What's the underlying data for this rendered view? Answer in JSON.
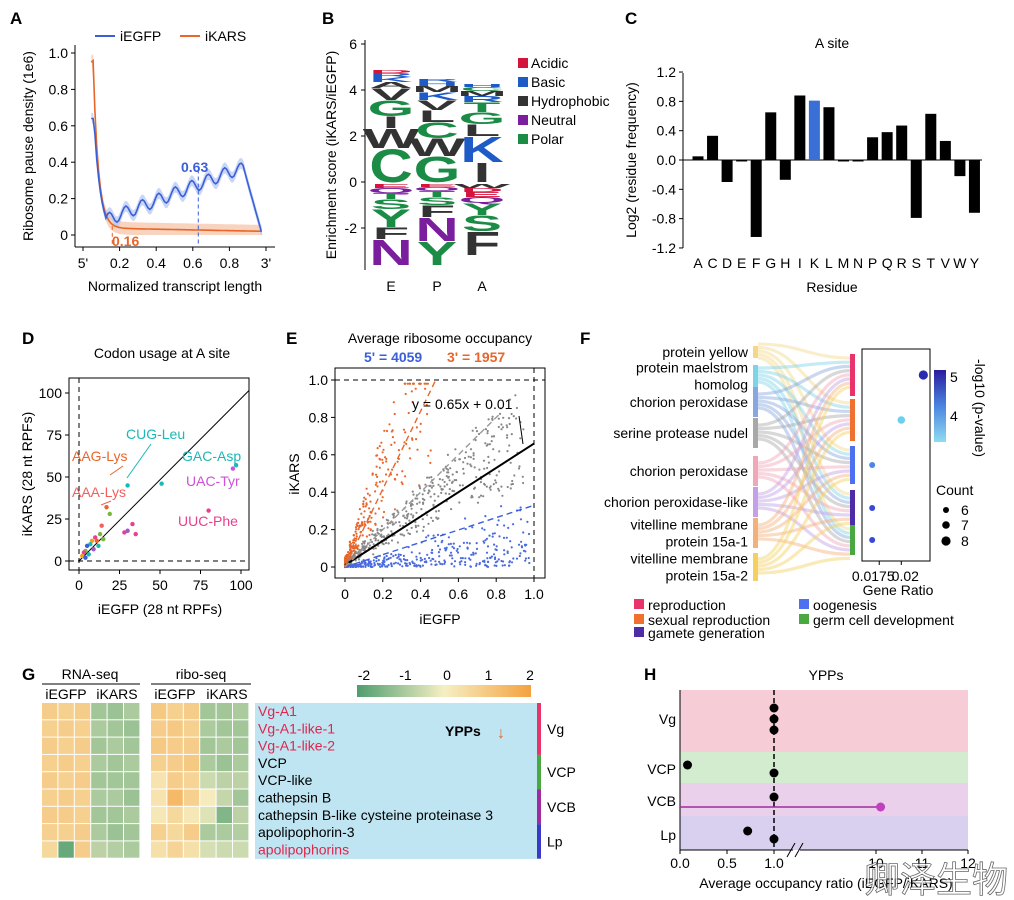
{
  "watermark": "卿泽生物",
  "colors": {
    "egfp": "#3a5fd8",
    "kars": "#e8662a",
    "black": "#111111",
    "grey": "#808080",
    "light_blue": "#a9ddf0"
  },
  "panelA": {
    "letter": "A",
    "legend": [
      "iEGFP",
      "iKARS"
    ],
    "ylabel": "Ribosome pause density (1e6)",
    "xlabel": "Normalized transcript length",
    "yticks": [
      "0",
      "0.2",
      "0.4",
      "0.6",
      "0.8",
      "1.0"
    ],
    "xticks": [
      "5'",
      "0.2",
      "0.4",
      "0.6",
      "0.8",
      "3'"
    ],
    "ann_egfp": "0.63",
    "ann_kars": "0.16"
  },
  "panelB": {
    "letter": "B",
    "ylabel": "Enrichment score (iKARS/iEGFP)",
    "yticks": [
      "-2",
      "0",
      "2",
      "4",
      "6"
    ],
    "xticks": [
      "E",
      "P",
      "A"
    ],
    "legend": [
      {
        "label": "Acidic",
        "color": "#d4143c"
      },
      {
        "label": "Basic",
        "color": "#1f5bc7"
      },
      {
        "label": "Hydrophobic",
        "color": "#333333"
      },
      {
        "label": "Neutral",
        "color": "#7a1e9e"
      },
      {
        "label": "Polar",
        "color": "#1a8c45"
      }
    ],
    "columns": [
      {
        "pos": [
          {
            "l": "C",
            "c": "#1a8c45",
            "h": 34
          },
          {
            "l": "W",
            "c": "#333333",
            "h": 20
          },
          {
            "l": "I",
            "c": "#333333",
            "h": 12
          },
          {
            "l": "G",
            "c": "#1a8c45",
            "h": 16
          },
          {
            "l": "V",
            "c": "#333333",
            "h": 12
          },
          {
            "l": "A",
            "c": "#333333",
            "h": 6
          },
          {
            "l": "K",
            "c": "#1f5bc7",
            "h": 5
          },
          {
            "l": "R",
            "c": "#1f5bc7",
            "h": 4
          },
          {
            "l": "D",
            "c": "#d4143c",
            "h": 3
          }
        ],
        "neg": [
          {
            "l": "E",
            "c": "#d4143c",
            "h": 4
          },
          {
            "l": "Q",
            "c": "#7a1e9e",
            "h": 5
          },
          {
            "l": "T",
            "c": "#1a8c45",
            "h": 6
          },
          {
            "l": "S",
            "c": "#1a8c45",
            "h": 10
          },
          {
            "l": "Y",
            "c": "#1a8c45",
            "h": 18
          },
          {
            "l": "F",
            "c": "#333333",
            "h": 12
          },
          {
            "l": "N",
            "c": "#7a1e9e",
            "h": 26
          }
        ]
      },
      {
        "pos": [
          {
            "l": "G",
            "c": "#1a8c45",
            "h": 26
          },
          {
            "l": "W",
            "c": "#333333",
            "h": 18
          },
          {
            "l": "C",
            "c": "#1a8c45",
            "h": 16
          },
          {
            "l": "L",
            "c": "#333333",
            "h": 12
          },
          {
            "l": "V",
            "c": "#333333",
            "h": 10
          },
          {
            "l": "K",
            "c": "#1f5bc7",
            "h": 8
          },
          {
            "l": "M",
            "c": "#333333",
            "h": 6
          },
          {
            "l": "H",
            "c": "#1f5bc7",
            "h": 4
          },
          {
            "l": "R",
            "c": "#1f5bc7",
            "h": 3
          }
        ],
        "neg": [
          {
            "l": "E",
            "c": "#d4143c",
            "h": 3
          },
          {
            "l": "Q",
            "c": "#7a1e9e",
            "h": 4
          },
          {
            "l": "T",
            "c": "#1a8c45",
            "h": 6
          },
          {
            "l": "S",
            "c": "#1a8c45",
            "h": 8
          },
          {
            "l": "F",
            "c": "#333333",
            "h": 12
          },
          {
            "l": "N",
            "c": "#7a1e9e",
            "h": 24
          },
          {
            "l": "Y",
            "c": "#1a8c45",
            "h": 24
          }
        ]
      },
      {
        "pos": [
          {
            "l": "I",
            "c": "#333333",
            "h": 20
          },
          {
            "l": "K",
            "c": "#1f5bc7",
            "h": 26
          },
          {
            "l": "L",
            "c": "#333333",
            "h": 12
          },
          {
            "l": "G",
            "c": "#1a8c45",
            "h": 12
          },
          {
            "l": "T",
            "c": "#1a8c45",
            "h": 10
          },
          {
            "l": "R",
            "c": "#1f5bc7",
            "h": 6
          },
          {
            "l": "M",
            "c": "#333333",
            "h": 5
          },
          {
            "l": "C",
            "c": "#1a8c45",
            "h": 4
          },
          {
            "l": "H",
            "c": "#1f5bc7",
            "h": 3
          }
        ],
        "neg": [
          {
            "l": "W",
            "c": "#333333",
            "h": 4
          },
          {
            "l": "D",
            "c": "#d4143c",
            "h": 4
          },
          {
            "l": "E",
            "c": "#d4143c",
            "h": 5
          },
          {
            "l": "Q",
            "c": "#7a1e9e",
            "h": 6
          },
          {
            "l": "Y",
            "c": "#1a8c45",
            "h": 12
          },
          {
            "l": "S",
            "c": "#1a8c45",
            "h": 16
          },
          {
            "l": "F",
            "c": "#333333",
            "h": 24
          }
        ]
      }
    ]
  },
  "panelC": {
    "letter": "C",
    "title": "A site",
    "ylabel": "Log2 (residue frequency)",
    "xlabel": "Residue",
    "yticks": [
      "-1.2",
      "-0.8",
      "-0.4",
      "0.0",
      "0.4",
      "0.8",
      "1.2"
    ],
    "categories": [
      "A",
      "C",
      "D",
      "E",
      "F",
      "G",
      "H",
      "I",
      "K",
      "L",
      "M",
      "N",
      "P",
      "Q",
      "R",
      "S",
      "T",
      "V",
      "W",
      "Y"
    ],
    "values": [
      0.05,
      0.33,
      -0.3,
      -0.02,
      -1.05,
      0.65,
      -0.27,
      0.88,
      0.81,
      0.72,
      -0.02,
      -0.02,
      0.31,
      0.38,
      0.47,
      -0.79,
      0.63,
      0.26,
      -0.22,
      -0.72
    ],
    "highlight": "K"
  },
  "panelD": {
    "letter": "D",
    "title": "Codon usage at A site",
    "xlabel": "iEGFP (28 nt RPFs)",
    "ylabel": "iKARS (28 nt RPFs)",
    "ticks": [
      "0",
      "25",
      "50",
      "75",
      "100"
    ],
    "labels": [
      {
        "text": "CUG-Leu",
        "color": "#1ab8b8"
      },
      {
        "text": "GAC-Asp",
        "color": "#1ab8b8"
      },
      {
        "text": "AAG-Lys",
        "color": "#e8662a"
      },
      {
        "text": "UAC-Tyr",
        "color": "#d050d8"
      },
      {
        "text": "AAA-Lys",
        "color": "#f06060"
      },
      {
        "text": "UUC-Phe",
        "color": "#e8408c"
      }
    ],
    "points": [
      {
        "x": 30,
        "y": 45,
        "c": "#1ab8b8"
      },
      {
        "x": 97,
        "y": 57,
        "c": "#1ab8b8"
      },
      {
        "x": 17,
        "y": 32,
        "c": "#e8662a"
      },
      {
        "x": 95,
        "y": 55,
        "c": "#d050d8"
      },
      {
        "x": 14,
        "y": 21,
        "c": "#f06060"
      },
      {
        "x": 80,
        "y": 30,
        "c": "#e8408c"
      },
      {
        "x": 51,
        "y": 46,
        "c": "#1ab8b8"
      },
      {
        "x": 33,
        "y": 22,
        "c": "#e8408c"
      },
      {
        "x": 28,
        "y": 17,
        "c": "#e8408c"
      },
      {
        "x": 30,
        "y": 18,
        "c": "#9e58c8"
      },
      {
        "x": 35,
        "y": 16,
        "c": "#e8408c"
      },
      {
        "x": 19,
        "y": 28,
        "c": "#7ab63c"
      },
      {
        "x": 13,
        "y": 16,
        "c": "#7ab63c"
      },
      {
        "x": 10,
        "y": 14,
        "c": "#e8408c"
      },
      {
        "x": 8,
        "y": 12,
        "c": "#f0a020"
      },
      {
        "x": 7,
        "y": 10,
        "c": "#1ab8b8"
      },
      {
        "x": 5,
        "y": 9,
        "c": "#3a5fd8"
      },
      {
        "x": 4,
        "y": 6,
        "c": "#7ab63c"
      },
      {
        "x": 3,
        "y": 5,
        "c": "#e8408c"
      },
      {
        "x": 6,
        "y": 4,
        "c": "#1ab8b8"
      },
      {
        "x": 2,
        "y": 3,
        "c": "#f0a020"
      },
      {
        "x": 9,
        "y": 7,
        "c": "#9e58c8"
      },
      {
        "x": 12,
        "y": 9,
        "c": "#1ab8b8"
      },
      {
        "x": 15,
        "y": 13,
        "c": "#7ab63c"
      },
      {
        "x": 4,
        "y": 2,
        "c": "#3a5fd8"
      },
      {
        "x": 11,
        "y": 12,
        "c": "#e8662a"
      }
    ]
  },
  "panelE": {
    "letter": "E",
    "title": "Average ribosome occupancy",
    "sub_5_label": "5' = 4059",
    "sub_3_label": "3' = 1957",
    "xlabel": "iEGFP",
    "ylabel": "iKARS",
    "ticks": [
      "0",
      "0.2",
      "0.4",
      "0.6",
      "0.8",
      "1.0"
    ],
    "equation": "y = 0.65x + 0.01"
  },
  "panelF": {
    "letter": "F",
    "terms": [
      {
        "label": "protein yellow",
        "color": "#f5d78a"
      },
      {
        "label": "protein maelstrom homolog",
        "color": "#7fd3e6"
      },
      {
        "label": "chorion peroxidase",
        "color": "#88a6e0"
      },
      {
        "label": "serine protease nudel",
        "color": "#a8a8a8"
      },
      {
        "label": "chorion peroxidase",
        "color": "#f2a7b8"
      },
      {
        "label": "chorion peroxidase-like",
        "color": "#c4a0e6"
      },
      {
        "label": "vitelline membrane protein 15a-1",
        "color": "#f5b079"
      },
      {
        "label": "vitelline membrane protein 15a-2",
        "color": "#f3d060"
      }
    ],
    "categories": [
      {
        "label": "reproduction",
        "color": "#e8336b"
      },
      {
        "label": "sexual reproduction",
        "color": "#f07030"
      },
      {
        "label": "gamete generation",
        "color": "#4e2ca6"
      },
      {
        "label": "oogenesis",
        "color": "#4e6ff0"
      },
      {
        "label": "germ cell development",
        "color": "#4aa840"
      }
    ],
    "xlabel": "Gene Ratio",
    "xticks": [
      "0.0175",
      "0.02"
    ],
    "colorbar_label": "-log10 (p-value)",
    "colorbar_ticks": [
      "5",
      "4"
    ],
    "count_title": "Count",
    "count_labels": [
      "6",
      "7",
      "8"
    ],
    "dots": [
      {
        "gene_ratio": 0.0225,
        "log10p": 4.9,
        "count": 8
      },
      {
        "gene_ratio": 0.02,
        "log10p": 3.6,
        "count": 7
      },
      {
        "gene_ratio": 0.0167,
        "log10p": 4.2,
        "count": 6
      },
      {
        "gene_ratio": 0.0167,
        "log10p": 5.1,
        "count": 6
      },
      {
        "gene_ratio": 0.0167,
        "log10p": 5.0,
        "count": 6
      }
    ]
  },
  "panelG": {
    "letter": "G",
    "rna_title": "RNA-seq",
    "ribo_title": "ribo-seq",
    "col_iegfp": "iEGFP",
    "col_ikars": "iKARS",
    "scale_ticks": [
      "-2",
      "-1",
      "0",
      "1",
      "2"
    ],
    "ypps_label": "YPPs",
    "ypps_arrow": "↓",
    "genes": [
      {
        "name": "Vg-A1",
        "red": true
      },
      {
        "name": "Vg-A1-like-1",
        "red": true
      },
      {
        "name": "Vg-A1-like-2",
        "red": true
      },
      {
        "name": "VCP",
        "red": false
      },
      {
        "name": "VCP-like",
        "red": false
      },
      {
        "name": "cathepsin B",
        "red": false
      },
      {
        "name": "cathepsin B-like cysteine proteinase 3",
        "red": false
      },
      {
        "name": "apolipophorin-3",
        "red": false
      },
      {
        "name": "apolipophorins",
        "red": true
      }
    ],
    "groups": [
      {
        "label": "Vg",
        "color": "#e8336b"
      },
      {
        "label": "VCP",
        "color": "#4aa840"
      },
      {
        "label": "VCB",
        "color": "#a02aa0"
      },
      {
        "label": "Lp",
        "color": "#3a3ac8"
      }
    ],
    "rna_values": [
      [
        0.9,
        0.8,
        0.9,
        -1.0,
        -1.1,
        -0.9
      ],
      [
        0.8,
        0.9,
        0.8,
        -0.9,
        -1.0,
        -1.1
      ],
      [
        0.9,
        0.8,
        0.9,
        -1.0,
        -0.9,
        -1.0
      ],
      [
        0.8,
        0.9,
        0.8,
        -0.9,
        -1.0,
        -0.9
      ],
      [
        0.9,
        0.8,
        0.9,
        -1.0,
        -1.0,
        -1.0
      ],
      [
        0.8,
        0.9,
        0.8,
        -0.9,
        -0.9,
        -1.1
      ],
      [
        0.9,
        0.9,
        0.8,
        -1.0,
        -1.0,
        -0.9
      ],
      [
        0.8,
        0.8,
        0.9,
        -0.9,
        -1.1,
        -1.0
      ],
      [
        0.6,
        -1.7,
        0.9,
        -0.7,
        -0.8,
        -0.9
      ]
    ],
    "ribo_values": [
      [
        1.0,
        0.8,
        0.9,
        -1.0,
        -1.0,
        -0.9
      ],
      [
        0.9,
        1.0,
        0.8,
        -0.9,
        -1.0,
        -1.0
      ],
      [
        1.0,
        0.9,
        0.9,
        -1.0,
        -0.9,
        -1.0
      ],
      [
        0.8,
        0.9,
        1.0,
        -0.9,
        -1.1,
        -0.9
      ],
      [
        0.3,
        0.9,
        0.7,
        -0.5,
        -0.7,
        -0.7
      ],
      [
        0.3,
        1.4,
        0.8,
        0.1,
        -0.6,
        -1.0
      ],
      [
        0.2,
        0.6,
        0.2,
        -0.3,
        -1.4,
        -0.7
      ],
      [
        0.8,
        0.6,
        0.9,
        -0.9,
        -0.9,
        -0.8
      ],
      [
        0.4,
        0.7,
        0.4,
        -0.4,
        -0.5,
        -0.5
      ]
    ]
  },
  "panelH": {
    "letter": "H",
    "title": "YPPs",
    "xlabel": "Average occupancy ratio (iEGFP/iKARS)",
    "xticks": [
      "0.0",
      "0.5",
      "1.0",
      "10",
      "11",
      "12"
    ],
    "categories": [
      "Vg",
      "VCP",
      "VCB",
      "Lp"
    ],
    "band_colors": [
      "#f6cdd6",
      "#d3ecd0",
      "#ead0ea",
      "#d9d0ef"
    ],
    "points": [
      {
        "cat": "Vg",
        "values": [
          1.0,
          1.0,
          1.0
        ]
      },
      {
        "cat": "VCP",
        "values": [
          0.08,
          1.0
        ]
      },
      {
        "cat": "VCB",
        "values": [
          1.0,
          10.1
        ]
      },
      {
        "cat": "Lp",
        "values": [
          0.72,
          1.0
        ]
      }
    ]
  }
}
